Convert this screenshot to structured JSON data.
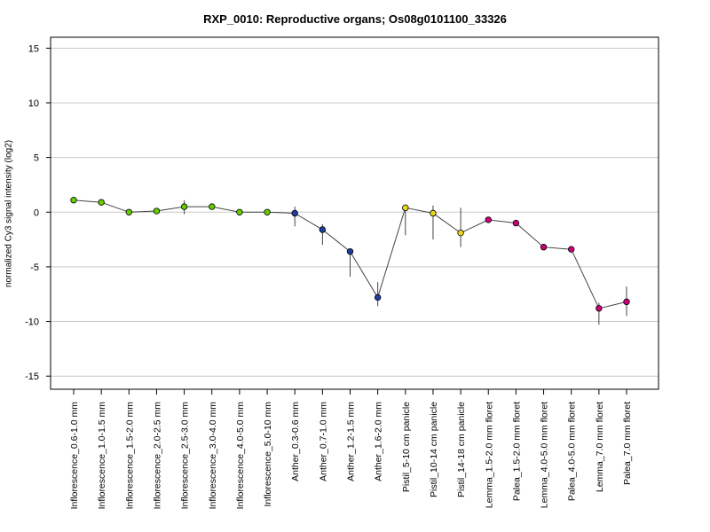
{
  "chart_data": {
    "type": "line",
    "title": "RXP_0010: Reproductive organs; Os08g0101100_33326",
    "xlabel": "",
    "ylabel": "normalized Cy3 signal intensity (log2)",
    "ylim": [
      -16.2,
      16
    ],
    "yticks": [
      15,
      10,
      5,
      0,
      -5,
      -10,
      -15
    ],
    "grid": true,
    "categories": [
      "Inflorescence_0.6-1.0 mm",
      "Inflorescence_1.0-1.5 mm",
      "Inflorescence_1.5-2.0 mm",
      "Inflorescence_2.0-2.5 mm",
      "Inflorescence_2.5-3.0 mm",
      "Inflorescence_3.0-4.0 mm",
      "Inflorescence_4.0-5.0 mm",
      "Inflorescence_5.0-10 mm",
      "Anther_0.3-0.6 mm",
      "Anther_0.7-1.0 mm",
      "Anther_1.2-1.5 mm",
      "Anther_1.6-2.0 mm",
      "Pistil_5-10 cm panicle",
      "Pistil_10-14 cm panicle",
      "Pistil_14-18 cm panicle",
      "Lemma_1.5-2.0 mm floret",
      "Palea_1.5-2.0 mm floret",
      "Lemma_4.0-5.0 mm floret",
      "Palea_4.0-5.0 mm floret",
      "Lemma_7.0 mm floret",
      "Palea_7.0 mm floret"
    ],
    "values": [
      1.1,
      0.9,
      0.0,
      0.1,
      0.5,
      0.5,
      0.0,
      0.0,
      -0.1,
      -1.6,
      -3.6,
      -7.8,
      0.4,
      -0.1,
      -1.9,
      -0.7,
      -1.0,
      -3.2,
      -3.4,
      -8.8,
      -8.2
    ],
    "error_low": [
      null,
      null,
      null,
      null,
      -0.2,
      null,
      null,
      null,
      -1.3,
      -3.0,
      -5.9,
      -8.6,
      -2.1,
      -2.5,
      -3.2,
      null,
      null,
      null,
      null,
      -10.3,
      -9.5
    ],
    "error_high": [
      null,
      null,
      null,
      null,
      1.1,
      null,
      null,
      null,
      0.5,
      -1.1,
      null,
      -6.4,
      0.5,
      0.6,
      0.4,
      null,
      null,
      null,
      null,
      -8.3,
      -6.8
    ],
    "point_colors": [
      "#66cc00",
      "#66cc00",
      "#66cc00",
      "#66cc00",
      "#66cc00",
      "#66cc00",
      "#66cc00",
      "#66cc00",
      "#1f3f9f",
      "#1f3f9f",
      "#1f3f9f",
      "#1f3f9f",
      "#e8d820",
      "#e8d820",
      "#e8d820",
      "#cc0077",
      "#cc0077",
      "#cc0077",
      "#cc0077",
      "#cc0077",
      "#cc0077"
    ]
  }
}
